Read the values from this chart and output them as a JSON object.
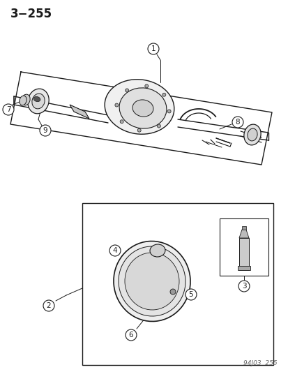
{
  "title": "3−255",
  "footer": "94J03  255",
  "bg_color": "#ffffff",
  "line_color": "#1a1a1a",
  "fig_width": 4.14,
  "fig_height": 5.33,
  "dpi": 100
}
